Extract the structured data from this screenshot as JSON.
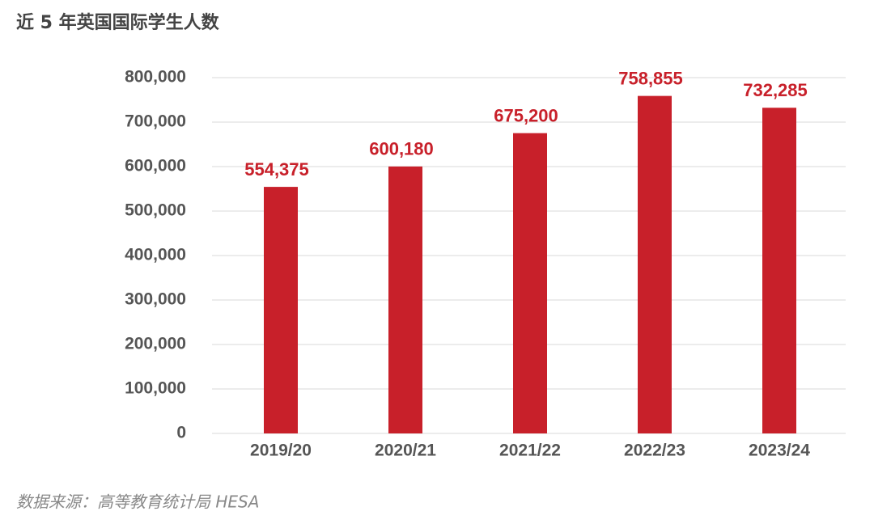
{
  "chart_data": {
    "type": "bar",
    "title": "近 5 年英国国际学生人数",
    "source": "数据来源：高等教育统计局 HESA",
    "categories": [
      "2019/20",
      "2020/21",
      "2021/22",
      "2022/23",
      "2023/24"
    ],
    "values": [
      554375,
      600180,
      675200,
      758855,
      732285
    ],
    "value_labels": [
      "554,375",
      "600,180",
      "675,200",
      "758,855",
      "732,285"
    ],
    "color": "#c8202a",
    "ylim": [
      0,
      800000
    ],
    "yticks": [
      0,
      {
        "value": 100000,
        "label": "100,000"
      },
      {
        "value": 200000,
        "label": "200,000"
      },
      {
        "value": 300000,
        "label": "300,000"
      },
      {
        "value": 400000,
        "label": "400,000"
      },
      {
        "value": 500000,
        "label": "500,000"
      },
      {
        "value": 600000,
        "label": "600,000"
      },
      {
        "value": 700000,
        "label": "700,000"
      },
      {
        "value": 800000,
        "label": "800,000"
      }
    ],
    "grid": true
  }
}
